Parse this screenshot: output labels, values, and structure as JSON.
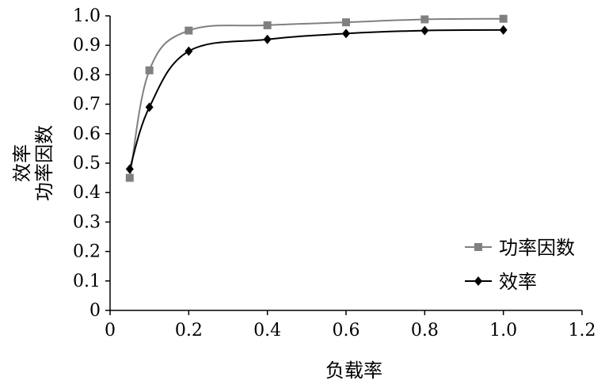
{
  "chart_data": {
    "type": "line",
    "title": "",
    "xlabel": "负载率",
    "ylabel_lines": [
      "效率",
      "功率因数"
    ],
    "xlim": [
      0,
      1.2
    ],
    "ylim": [
      0,
      1.0
    ],
    "xticks": [
      "0",
      "0.2",
      "0.4",
      "0.6",
      "0.8",
      "1.0",
      "1.2"
    ],
    "yticks": [
      "0",
      "0.1",
      "0.2",
      "0.3",
      "0.4",
      "0.5",
      "0.6",
      "0.7",
      "0.8",
      "0.9",
      "1.0"
    ],
    "grid": false,
    "legend_position": "bottom-right",
    "series": [
      {
        "name": "功率因数",
        "marker": "square",
        "color": "#808080",
        "x": [
          0.05,
          0.1,
          0.2,
          0.4,
          0.6,
          0.8,
          1.0
        ],
        "y": [
          0.45,
          0.815,
          0.95,
          0.968,
          0.978,
          0.988,
          0.99
        ]
      },
      {
        "name": "效率",
        "marker": "diamond",
        "color": "#000000",
        "x": [
          0.05,
          0.1,
          0.2,
          0.4,
          0.6,
          0.8,
          1.0
        ],
        "y": [
          0.48,
          0.69,
          0.88,
          0.92,
          0.94,
          0.95,
          0.952
        ]
      }
    ]
  }
}
